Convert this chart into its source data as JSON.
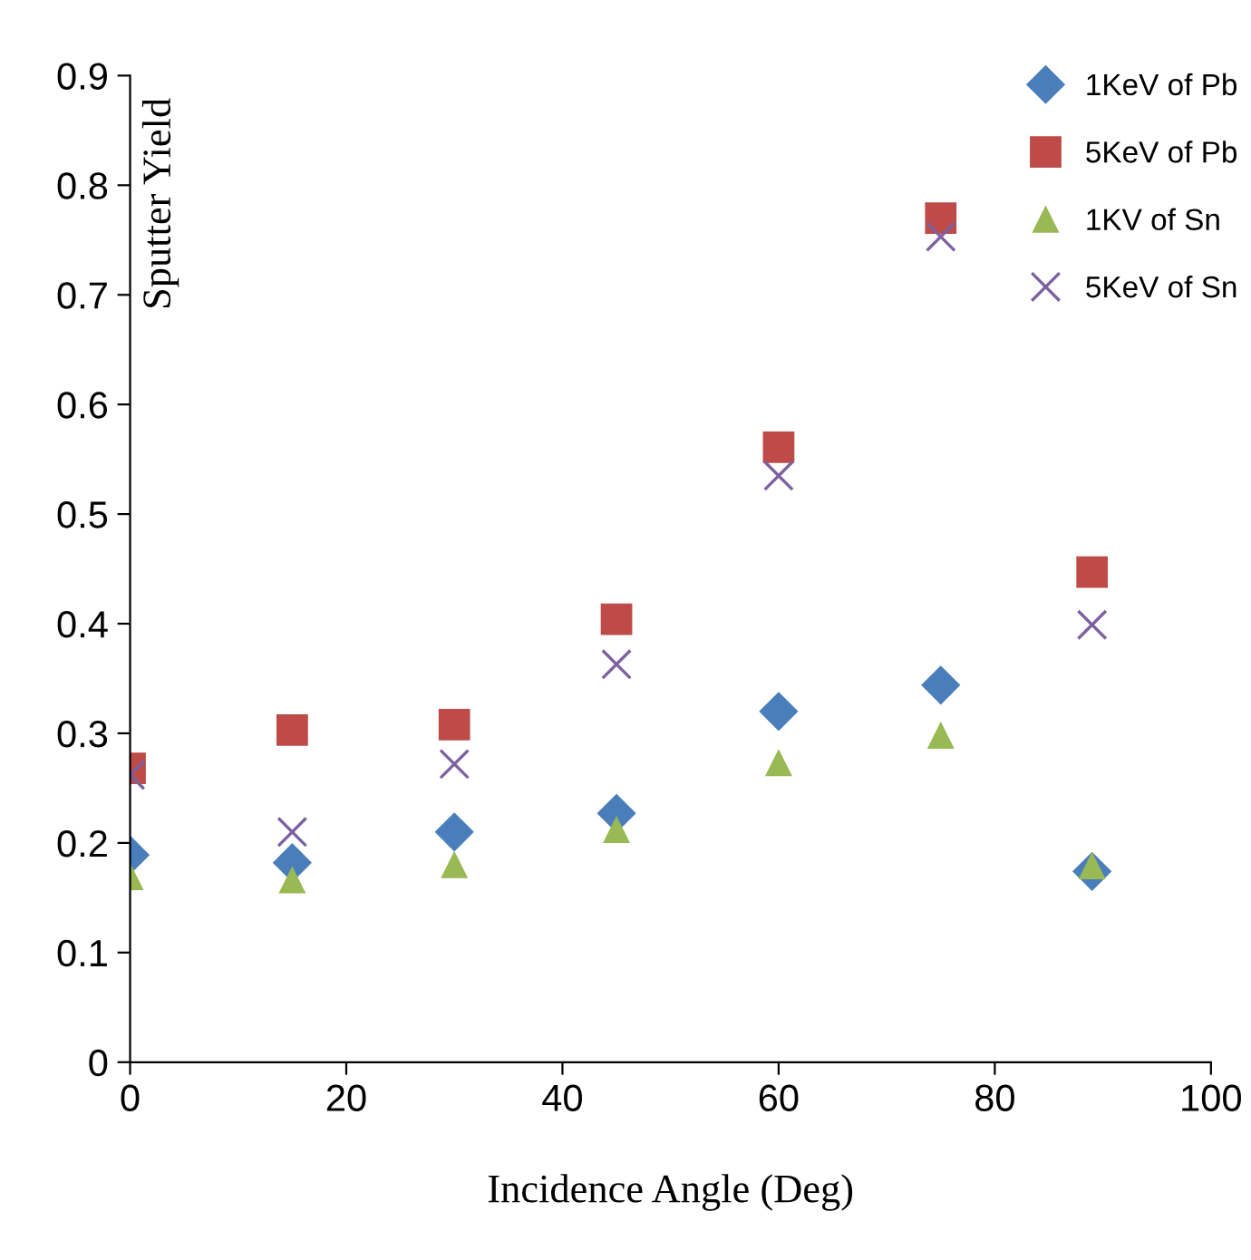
{
  "chart_data": {
    "type": "scatter",
    "xlabel": "Incidence Angle (Deg)",
    "ylabel": "Sputter Yield",
    "x": [
      0,
      15,
      30,
      45,
      60,
      75,
      89
    ],
    "series": [
      {
        "name": "1KeV of Pb",
        "color": "#4a7ebb",
        "marker": "diamond",
        "values": [
          0.189,
          0.182,
          0.21,
          0.227,
          0.32,
          0.344,
          0.174
        ]
      },
      {
        "name": "5KeV of Pb",
        "color": "#be4b48",
        "marker": "square",
        "values": [
          0.268,
          0.303,
          0.308,
          0.404,
          0.561,
          0.77,
          0.447
        ]
      },
      {
        "name": "1KV of Sn",
        "color": "#98b954",
        "marker": "triangle",
        "values": [
          0.169,
          0.166,
          0.18,
          0.212,
          0.273,
          0.298,
          0.179
        ]
      },
      {
        "name": "5KeV of Sn",
        "color": "#7d60a0",
        "marker": "cross",
        "values": [
          0.262,
          0.21,
          0.272,
          0.363,
          0.535,
          0.753,
          0.399
        ]
      }
    ],
    "xlim": [
      0,
      100
    ],
    "xticks": [
      0,
      20,
      40,
      60,
      80,
      100
    ],
    "ylim": [
      0,
      0.9
    ],
    "yticks": [
      0,
      0.1,
      0.2,
      0.3,
      0.4,
      0.5,
      0.6,
      0.7,
      0.8,
      0.9
    ],
    "grid": false,
    "legend": "top right"
  }
}
